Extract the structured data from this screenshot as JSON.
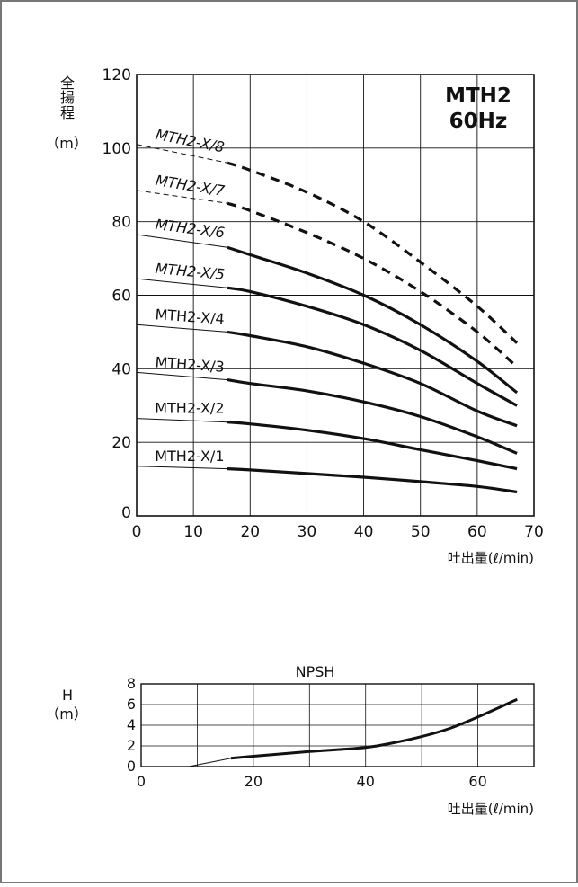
{
  "chart_data": [
    {
      "type": "line",
      "badge": [
        "MTH2",
        "60Hz"
      ],
      "ylabel": [
        "全",
        "揚",
        "程",
        "（m）"
      ],
      "xlabel": "吐出量(ℓ/min)",
      "xlim": [
        0,
        70
      ],
      "ylim": [
        0,
        120
      ],
      "xticks": [
        0,
        10,
        20,
        30,
        40,
        50,
        60,
        70
      ],
      "yticks": [
        0,
        20,
        40,
        60,
        80,
        100,
        120
      ],
      "grid": true,
      "series": [
        {
          "name": "MTH2-X/1",
          "style": "solid",
          "x": [
            16,
            20,
            30,
            40,
            50,
            60,
            67
          ],
          "y": [
            12.8,
            12.5,
            11.5,
            10.5,
            9.3,
            8.0,
            6.5
          ]
        },
        {
          "name": "MTH2-X/2",
          "style": "solid",
          "x": [
            16,
            20,
            30,
            40,
            50,
            60,
            67
          ],
          "y": [
            25.5,
            25.0,
            23.3,
            21.0,
            18.0,
            15.0,
            12.8
          ]
        },
        {
          "name": "MTH2-X/3",
          "style": "solid",
          "x": [
            16,
            20,
            30,
            40,
            50,
            60,
            67
          ],
          "y": [
            37.0,
            36.0,
            34.0,
            31.0,
            27.0,
            21.5,
            17.0
          ]
        },
        {
          "name": "MTH2-X/4",
          "style": "solid",
          "x": [
            16,
            20,
            30,
            40,
            50,
            60,
            67
          ],
          "y": [
            50.0,
            49.0,
            46.0,
            41.5,
            36.0,
            28.5,
            24.5
          ]
        },
        {
          "name": "MTH2-X/5",
          "style": "solid",
          "x": [
            16,
            20,
            30,
            40,
            50,
            60,
            67
          ],
          "y": [
            62.0,
            61.0,
            57.0,
            52.0,
            45.0,
            36.0,
            30.0
          ]
        },
        {
          "name": "MTH2-X/6",
          "style": "solid",
          "x": [
            16,
            20,
            30,
            40,
            50,
            60,
            67
          ],
          "y": [
            73.0,
            71.0,
            66.0,
            60.0,
            52.0,
            42.0,
            33.5
          ]
        },
        {
          "name": "MTH2-X/7",
          "style": "dashed",
          "x": [
            16,
            20,
            30,
            40,
            50,
            60,
            67
          ],
          "y": [
            85.0,
            83.0,
            77.0,
            70.0,
            61.0,
            50.0,
            40.5
          ]
        },
        {
          "name": "MTH2-X/8",
          "style": "dashed",
          "x": [
            16,
            20,
            30,
            40,
            50,
            60,
            67
          ],
          "y": [
            96.0,
            94.0,
            88.0,
            80.0,
            69.0,
            57.0,
            47.0
          ]
        }
      ],
      "extrapolated_leads": [
        {
          "x": [
            0,
            16
          ],
          "y": [
            13.5,
            12.8
          ]
        },
        {
          "x": [
            0,
            16
          ],
          "y": [
            26.5,
            25.5
          ]
        },
        {
          "x": [
            0,
            16
          ],
          "y": [
            39.0,
            37.0
          ]
        },
        {
          "x": [
            0,
            16
          ],
          "y": [
            52.0,
            50.0
          ]
        },
        {
          "x": [
            0,
            16
          ],
          "y": [
            64.5,
            62.0
          ]
        },
        {
          "x": [
            0,
            16
          ],
          "y": [
            76.5,
            73.0
          ]
        },
        {
          "x": [
            0,
            16
          ],
          "y": [
            88.5,
            85.0
          ]
        },
        {
          "x": [
            0,
            16
          ],
          "y": [
            101.0,
            96.0
          ]
        }
      ]
    },
    {
      "type": "line",
      "title": "NPSH",
      "ylabel": [
        "H",
        "（m）"
      ],
      "xlabel": "吐出量(ℓ/min)",
      "xlim": [
        0,
        70
      ],
      "ylim": [
        0,
        8
      ],
      "xticks": [
        0,
        20,
        40,
        60
      ],
      "yticks": [
        0,
        2,
        4,
        6,
        8
      ],
      "grid": true,
      "series": [
        {
          "name": "NPSH",
          "style": "solid",
          "x": [
            16,
            20,
            30,
            40,
            45,
            50,
            55,
            60,
            67
          ],
          "y": [
            0.8,
            1.0,
            1.45,
            1.85,
            2.3,
            2.9,
            3.7,
            4.8,
            6.5
          ]
        }
      ],
      "extrapolated_leads": [
        {
          "x": [
            8.5,
            16
          ],
          "y": [
            0.0,
            0.8
          ]
        }
      ]
    }
  ]
}
